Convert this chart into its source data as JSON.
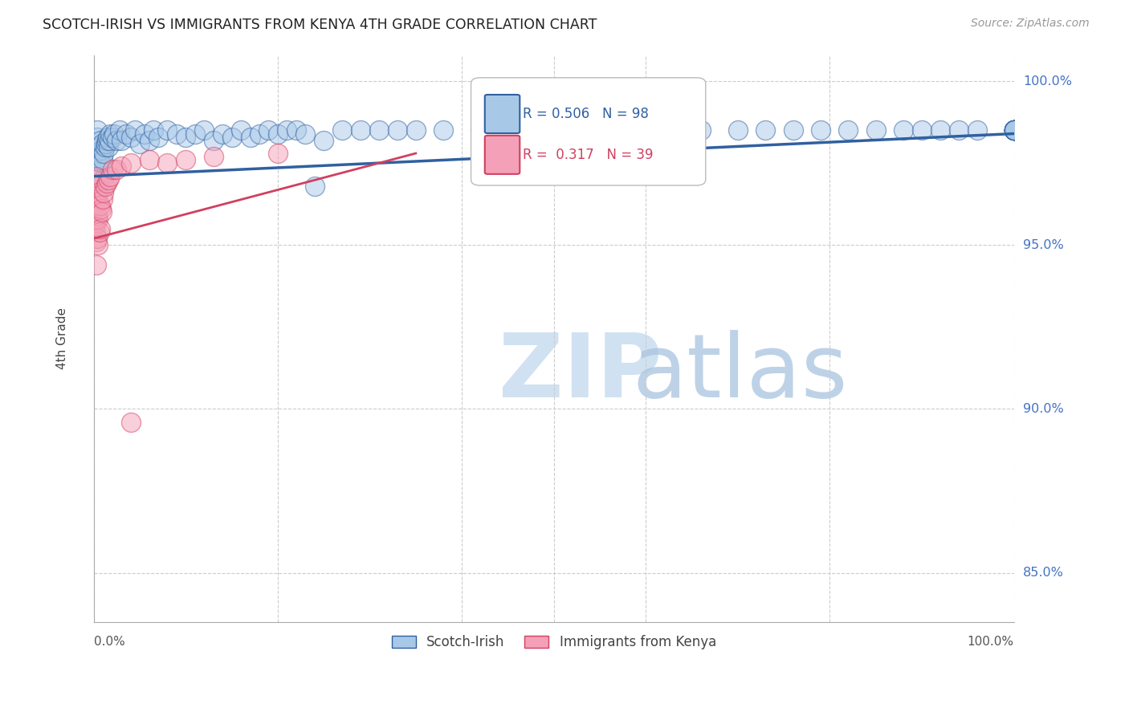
{
  "title": "SCOTCH-IRISH VS IMMIGRANTS FROM KENYA 4TH GRADE CORRELATION CHART",
  "source": "Source: ZipAtlas.com",
  "ylabel": "4th Grade",
  "legend_blue_label": "Scotch-Irish",
  "legend_pink_label": "Immigrants from Kenya",
  "blue_R": 0.506,
  "blue_N": 98,
  "pink_R": 0.317,
  "pink_N": 39,
  "blue_color": "#a8c8e8",
  "pink_color": "#f4a0b8",
  "blue_line_color": "#3060a0",
  "pink_line_color": "#d04060",
  "xlim": [
    0.0,
    1.0
  ],
  "ylim": [
    0.835,
    1.008
  ],
  "blue_scatter_x": [
    0.002,
    0.003,
    0.003,
    0.004,
    0.004,
    0.005,
    0.005,
    0.006,
    0.006,
    0.007,
    0.007,
    0.008,
    0.008,
    0.009,
    0.01,
    0.01,
    0.011,
    0.012,
    0.013,
    0.014,
    0.015,
    0.016,
    0.017,
    0.018,
    0.02,
    0.022,
    0.025,
    0.028,
    0.03,
    0.035,
    0.04,
    0.045,
    0.05,
    0.055,
    0.06,
    0.065,
    0.07,
    0.08,
    0.09,
    0.1,
    0.11,
    0.12,
    0.13,
    0.14,
    0.15,
    0.16,
    0.17,
    0.18,
    0.19,
    0.2,
    0.21,
    0.22,
    0.23,
    0.24,
    0.25,
    0.27,
    0.29,
    0.31,
    0.33,
    0.35,
    0.38,
    0.42,
    0.46,
    0.5,
    0.54,
    0.58,
    0.6,
    0.63,
    0.66,
    0.7,
    0.73,
    0.76,
    0.79,
    0.82,
    0.85,
    0.88,
    0.9,
    0.92,
    0.94,
    0.96,
    1.0,
    1.0,
    1.0,
    1.0,
    1.0,
    1.0,
    1.0,
    1.0,
    1.0,
    1.0,
    1.0,
    1.0,
    1.0,
    1.0,
    1.0,
    1.0,
    1.0,
    1.0
  ],
  "blue_scatter_y": [
    0.972,
    0.976,
    0.98,
    0.983,
    0.985,
    0.969,
    0.974,
    0.976,
    0.98,
    0.978,
    0.982,
    0.975,
    0.979,
    0.981,
    0.97,
    0.976,
    0.978,
    0.98,
    0.981,
    0.982,
    0.983,
    0.98,
    0.982,
    0.984,
    0.983,
    0.984,
    0.982,
    0.985,
    0.982,
    0.984,
    0.983,
    0.985,
    0.981,
    0.984,
    0.982,
    0.985,
    0.983,
    0.985,
    0.984,
    0.983,
    0.984,
    0.985,
    0.982,
    0.984,
    0.983,
    0.985,
    0.983,
    0.984,
    0.985,
    0.984,
    0.985,
    0.985,
    0.984,
    0.968,
    0.982,
    0.985,
    0.985,
    0.985,
    0.985,
    0.985,
    0.985,
    0.985,
    0.985,
    0.985,
    0.985,
    0.985,
    0.985,
    0.985,
    0.985,
    0.985,
    0.985,
    0.985,
    0.985,
    0.985,
    0.985,
    0.985,
    0.985,
    0.985,
    0.985,
    0.985,
    0.985,
    0.985,
    0.985,
    0.985,
    0.985,
    0.985,
    0.985,
    0.985,
    0.985,
    0.985,
    0.985,
    0.985,
    0.985,
    0.985,
    0.985,
    0.985,
    0.985,
    0.985
  ],
  "pink_scatter_x": [
    0.001,
    0.001,
    0.001,
    0.002,
    0.002,
    0.002,
    0.003,
    0.003,
    0.003,
    0.003,
    0.003,
    0.004,
    0.004,
    0.004,
    0.005,
    0.005,
    0.005,
    0.006,
    0.006,
    0.007,
    0.007,
    0.008,
    0.009,
    0.01,
    0.011,
    0.012,
    0.014,
    0.016,
    0.018,
    0.02,
    0.025,
    0.03,
    0.04,
    0.06,
    0.08,
    0.1,
    0.13,
    0.2,
    0.04
  ],
  "pink_scatter_y": [
    0.97,
    0.963,
    0.956,
    0.968,
    0.961,
    0.954,
    0.971,
    0.965,
    0.958,
    0.951,
    0.944,
    0.965,
    0.959,
    0.952,
    0.966,
    0.958,
    0.95,
    0.962,
    0.954,
    0.962,
    0.955,
    0.961,
    0.96,
    0.964,
    0.966,
    0.968,
    0.969,
    0.97,
    0.971,
    0.973,
    0.973,
    0.974,
    0.975,
    0.976,
    0.975,
    0.976,
    0.977,
    0.978,
    0.896
  ],
  "blue_line_x": [
    0.0,
    1.0
  ],
  "blue_line_y": [
    0.971,
    0.984
  ],
  "pink_line_x": [
    0.0,
    0.35
  ],
  "pink_line_y": [
    0.952,
    0.978
  ],
  "right_ytick_vals": [
    1.0,
    0.95,
    0.9,
    0.85
  ],
  "right_ytick_labels": [
    "100.0%",
    "95.0%",
    "90.0%",
    "85.0%"
  ]
}
